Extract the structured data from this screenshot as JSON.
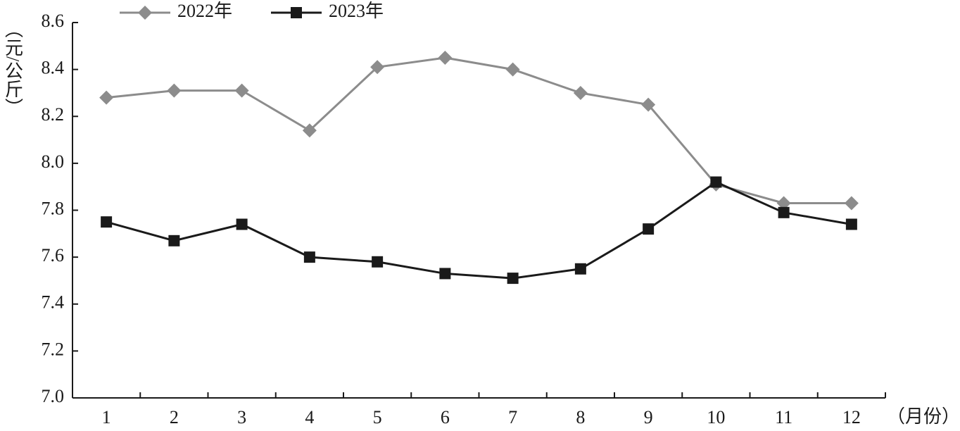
{
  "chart_data": {
    "type": "line",
    "y_label": "（元/公斤）",
    "x_label": "（月份）",
    "categories": [
      "1",
      "2",
      "3",
      "4",
      "5",
      "6",
      "7",
      "8",
      "9",
      "10",
      "11",
      "12"
    ],
    "series": [
      {
        "name": "2022年",
        "color": "#8c8c8c",
        "marker": "diamond",
        "values": [
          8.28,
          8.31,
          8.31,
          8.14,
          8.41,
          8.45,
          8.4,
          8.3,
          8.25,
          7.91,
          7.83,
          7.83
        ]
      },
      {
        "name": "2023年",
        "color": "#1a1a1a",
        "marker": "square",
        "values": [
          7.75,
          7.67,
          7.74,
          7.6,
          7.58,
          7.53,
          7.51,
          7.55,
          7.72,
          7.92,
          7.79,
          7.74
        ]
      }
    ],
    "ylim": [
      7.0,
      8.6
    ],
    "yticks": [
      {
        "value": 7.0,
        "label": "7.0"
      },
      7.2,
      7.4,
      7.6,
      7.8,
      {
        "value": 8.0,
        "label": "8.0"
      },
      8.2,
      8.4,
      8.6
    ]
  }
}
